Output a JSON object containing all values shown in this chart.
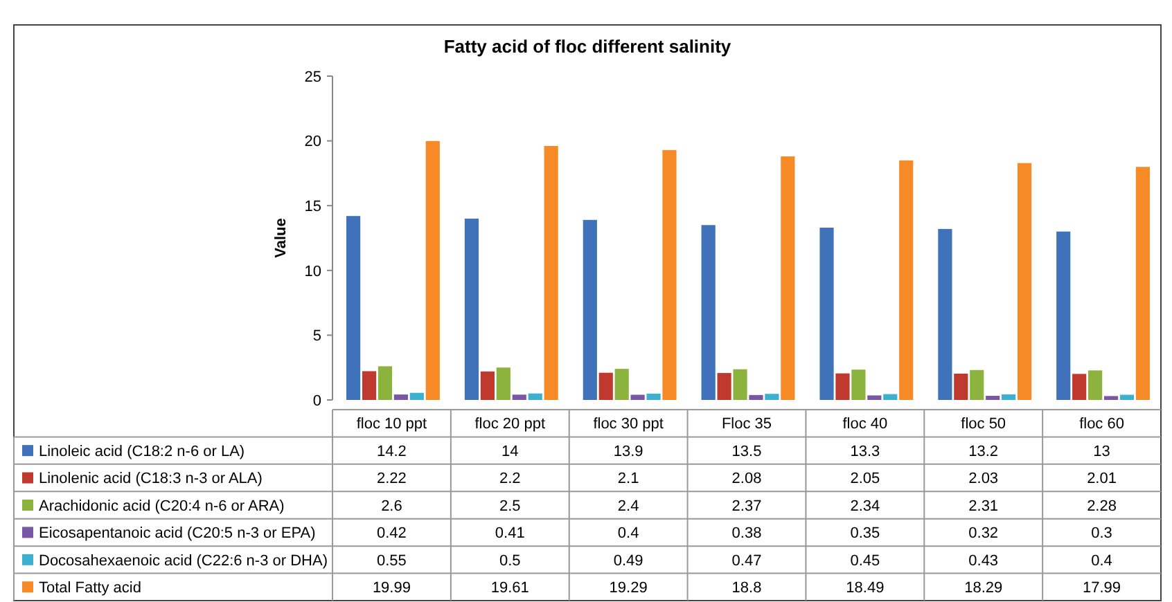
{
  "chart_data": {
    "type": "bar",
    "title": "Fatty acid of floc different salinity",
    "ylabel": "Value",
    "categories": [
      "floc 10 ppt",
      "floc 20 ppt",
      "floc 30 ppt",
      "Floc 35",
      "floc 40",
      "floc 50",
      "floc 60"
    ],
    "series": [
      {
        "name": "Linoleic acid (C18:2 n-6 or LA)",
        "color": "#3f72b8",
        "values": [
          14.2,
          14,
          13.9,
          13.5,
          13.3,
          13.2,
          13
        ]
      },
      {
        "name": "Linolenic acid (C18:3 n-3 or ALA)",
        "color": "#c0392f",
        "values": [
          2.22,
          2.2,
          2.1,
          2.08,
          2.05,
          2.03,
          2.01
        ]
      },
      {
        "name": "Arachidonic acid (C20:4 n-6 or ARA)",
        "color": "#8db33f",
        "values": [
          2.6,
          2.5,
          2.4,
          2.37,
          2.34,
          2.31,
          2.28
        ]
      },
      {
        "name": "Eicosapentanoic acid (C20:5 n-3 or EPA)",
        "color": "#7a57a5",
        "values": [
          0.42,
          0.41,
          0.4,
          0.38,
          0.35,
          0.32,
          0.3
        ]
      },
      {
        "name": "Docosahexaenoic acid (C22:6 n-3 or DHA)",
        "color": "#3bb1cf",
        "values": [
          0.55,
          0.5,
          0.49,
          0.47,
          0.45,
          0.43,
          0.4
        ]
      },
      {
        "name": "Total Fatty acid",
        "color": "#f58a26",
        "values": [
          19.99,
          19.61,
          19.29,
          18.8,
          18.49,
          18.29,
          17.99
        ]
      }
    ],
    "ylim": [
      0,
      25
    ],
    "yticks": [
      0,
      5,
      10,
      15,
      20,
      25
    ],
    "data_labels": true,
    "legend": "bottom",
    "grid": false
  }
}
